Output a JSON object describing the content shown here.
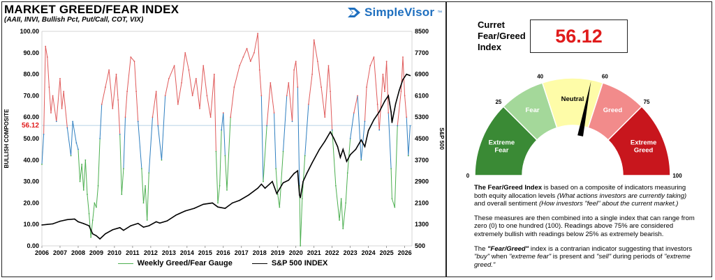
{
  "header": {
    "title": "MARKET GREED/FEAR INDEX",
    "subtitle": "(AAII, INVI, Bullish Pct, Put/Call, COT, VIX)",
    "brand": "SimpleVisor",
    "brand_mark": "™"
  },
  "colors": {
    "greed": "#e05a5a",
    "neutral_blue": "#2f7fc0",
    "fear": "#4caf50",
    "sp500": "#000000",
    "current_line": "#9fc3dd",
    "current_value": "#e01b1b",
    "zone_extreme_fear": "#3a8a35",
    "zone_fear": "#a4d89a",
    "zone_neutral": "#fefca8",
    "zone_greed": "#f28b8b",
    "zone_extreme_greed": "#c8161d"
  },
  "chart_data": {
    "type": "line",
    "ylabel_left": "BULLISH COMPOSITE",
    "ylabel_right": "S&P 500",
    "ylim_left": [
      0,
      100
    ],
    "ylim_right": [
      500,
      8500
    ],
    "yticks_left": [
      "0.00",
      "10.00",
      "20.00",
      "30.00",
      "40.00",
      "50.00",
      "60.00",
      "70.00",
      "80.00",
      "90.00",
      "100.00"
    ],
    "yticks_right": [
      "500",
      "1300",
      "2100",
      "2900",
      "3700",
      "4500",
      "5300",
      "6100",
      "6900",
      "7700",
      "8500"
    ],
    "x_range": [
      2006,
      2026.4
    ],
    "xticks": [
      "2006",
      "2007",
      "2008",
      "2009",
      "2010",
      "2011",
      "2012",
      "2013",
      "2014",
      "2015",
      "2016",
      "2017",
      "2018",
      "2019",
      "2020",
      "2021",
      "2022",
      "2023",
      "2024",
      "2025",
      "2026"
    ],
    "current_value_label": "56.12",
    "current_value": 56.12,
    "series": [
      {
        "name": "Weekly Greed/Fear Gauge",
        "x": [
          2006.0,
          2006.1,
          2006.2,
          2006.3,
          2006.4,
          2006.5,
          2006.6,
          2006.8,
          2007.0,
          2007.1,
          2007.2,
          2007.4,
          2007.6,
          2007.7,
          2007.9,
          2008.0,
          2008.1,
          2008.2,
          2008.3,
          2008.4,
          2008.5,
          2008.6,
          2008.7,
          2008.8,
          2008.9,
          2009.0,
          2009.1,
          2009.2,
          2009.3,
          2009.5,
          2009.7,
          2009.9,
          2010.1,
          2010.2,
          2010.3,
          2010.4,
          2010.5,
          2010.6,
          2010.7,
          2010.9,
          2011.1,
          2011.2,
          2011.3,
          2011.5,
          2011.6,
          2011.7,
          2011.8,
          2011.9,
          2012.1,
          2012.3,
          2012.4,
          2012.6,
          2012.8,
          2013.0,
          2013.3,
          2013.5,
          2013.7,
          2013.9,
          2014.1,
          2014.3,
          2014.5,
          2014.7,
          2014.9,
          2015.1,
          2015.3,
          2015.5,
          2015.6,
          2015.7,
          2015.8,
          2015.9,
          2016.0,
          2016.1,
          2016.2,
          2016.4,
          2016.6,
          2016.9,
          2017.1,
          2017.3,
          2017.5,
          2017.7,
          2017.9,
          2018.0,
          2018.1,
          2018.2,
          2018.4,
          2018.6,
          2018.8,
          2018.9,
          2019.0,
          2019.1,
          2019.3,
          2019.5,
          2019.6,
          2019.8,
          2019.9,
          2020.0,
          2020.1,
          2020.2,
          2020.25,
          2020.35,
          2020.5,
          2020.7,
          2020.9,
          2021.0,
          2021.2,
          2021.4,
          2021.6,
          2021.8,
          2021.9,
          2022.0,
          2022.2,
          2022.4,
          2022.5,
          2022.6,
          2022.75,
          2022.85,
          2023.0,
          2023.2,
          2023.4,
          2023.6,
          2023.8,
          2023.9,
          2024.1,
          2024.3,
          2024.5,
          2024.6,
          2024.8,
          2024.9,
          2025.0,
          2025.1,
          2025.25,
          2025.3,
          2025.45,
          2025.6,
          2025.8,
          2025.9,
          2026.0,
          2026.1,
          2026.2,
          2026.3
        ],
        "values": [
          38,
          52,
          93,
          88,
          74,
          62,
          70,
          58,
          78,
          64,
          72,
          55,
          42,
          58,
          48,
          45,
          30,
          38,
          26,
          40,
          24,
          15,
          4,
          12,
          20,
          18,
          28,
          50,
          66,
          74,
          82,
          64,
          80,
          68,
          52,
          24,
          36,
          60,
          72,
          88,
          86,
          72,
          58,
          36,
          20,
          28,
          12,
          34,
          60,
          72,
          56,
          40,
          70,
          78,
          84,
          66,
          76,
          90,
          82,
          70,
          78,
          64,
          84,
          70,
          60,
          80,
          44,
          20,
          28,
          54,
          62,
          42,
          26,
          60,
          74,
          84,
          88,
          92,
          86,
          90,
          99,
          82,
          70,
          30,
          56,
          76,
          62,
          36,
          24,
          18,
          44,
          70,
          76,
          58,
          82,
          86,
          74,
          28,
          0,
          22,
          42,
          66,
          80,
          96,
          86,
          74,
          60,
          84,
          72,
          54,
          28,
          12,
          22,
          8,
          20,
          34,
          50,
          62,
          70,
          40,
          58,
          74,
          84,
          88,
          66,
          54,
          80,
          72,
          86,
          62,
          36,
          22,
          18,
          56,
          72,
          88,
          70,
          60,
          42,
          56
        ]
      },
      {
        "name": "S&P 500 INDEX",
        "x": [
          2006.0,
          2006.3,
          2006.6,
          2007.0,
          2007.4,
          2007.8,
          2008.0,
          2008.3,
          2008.6,
          2008.8,
          2009.0,
          2009.2,
          2009.5,
          2009.9,
          2010.3,
          2010.5,
          2010.9,
          2011.3,
          2011.6,
          2011.9,
          2012.3,
          2012.5,
          2012.9,
          2013.4,
          2013.9,
          2014.4,
          2014.9,
          2015.4,
          2015.7,
          2016.1,
          2016.5,
          2016.9,
          2017.4,
          2017.9,
          2018.1,
          2018.3,
          2018.7,
          2018.95,
          2019.3,
          2019.6,
          2019.9,
          2020.1,
          2020.2,
          2020.25,
          2020.4,
          2020.6,
          2020.9,
          2021.3,
          2021.6,
          2021.9,
          2022.1,
          2022.3,
          2022.45,
          2022.6,
          2022.8,
          2023.0,
          2023.3,
          2023.6,
          2023.8,
          2024.0,
          2024.3,
          2024.6,
          2024.9,
          2025.1,
          2025.25,
          2025.3,
          2025.5,
          2025.7,
          2025.9,
          2026.1,
          2026.3
        ],
        "values": [
          1280,
          1300,
          1320,
          1420,
          1480,
          1500,
          1400,
          1330,
          1250,
          950,
          880,
          760,
          950,
          1100,
          1180,
          1080,
          1250,
          1340,
          1200,
          1250,
          1400,
          1350,
          1430,
          1650,
          1800,
          1900,
          2050,
          2100,
          1950,
          1900,
          2100,
          2200,
          2400,
          2650,
          2800,
          2650,
          2900,
          2450,
          2850,
          2950,
          3200,
          3300,
          2400,
          2300,
          2900,
          3200,
          3600,
          4100,
          4400,
          4750,
          4500,
          4200,
          3800,
          4100,
          3650,
          3900,
          4100,
          4450,
          4200,
          4800,
          5200,
          5500,
          5900,
          6100,
          5500,
          5100,
          5800,
          6300,
          6700,
          6900,
          6850
        ]
      }
    ]
  },
  "current_panel": {
    "label": "Curret Fear/Greed Index",
    "value": "56.12",
    "value_num": 56.12
  },
  "gauge": {
    "zones": [
      {
        "label": "Extreme Fear",
        "from": 0,
        "to": 25
      },
      {
        "label": "Fear",
        "from": 25,
        "to": 40
      },
      {
        "label": "Neutral",
        "from": 40,
        "to": 60
      },
      {
        "label": "Greed",
        "from": 60,
        "to": 75
      },
      {
        "label": "Extreme Greed",
        "from": 75,
        "to": 100
      }
    ],
    "ticks": [
      "0",
      "25",
      "40",
      "60",
      "75",
      "100"
    ],
    "needle_value": 56.12
  },
  "description": {
    "p1_strong": "The Fear/Greed Index",
    "p1_a": " is based on a composite of indicators measuring both equity allocation levels ",
    "p1_em1": "(What actions investors are currently taking)",
    "p1_b": " and overall sentiment ",
    "p1_em2": "(How investors \"feel\" about the current market.)",
    "p2": "These measures are then combined into a single index that can range from zero (0) to one hundred (100). Readings above 75% are considered extremely bullish with readings below 25% as extremely bearish.",
    "p3_a": "The ",
    "p3_strong": "\"Fear/Greed\"",
    "p3_b": " index is a contrarian indicator suggesting that investors ",
    "p3_em1": "\"buy\"",
    "p3_c": " when ",
    "p3_em2": "\"extreme fear\"",
    "p3_d": " is present and ",
    "p3_em3": "\"sell\"",
    "p3_e": " during periods of ",
    "p3_em4": "\"extreme greed.\""
  }
}
